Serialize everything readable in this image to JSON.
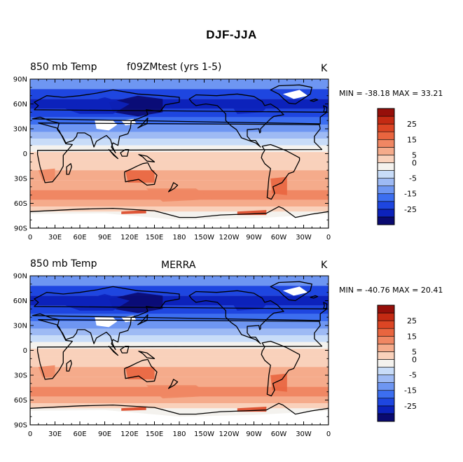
{
  "title": "DJF-JJA",
  "colors": [
    "#0a0a70",
    "#0c22bb",
    "#1e46e0",
    "#3c6ef0",
    "#6e96f2",
    "#9ebaf4",
    "#c8dcf8",
    "#f4f2ee",
    "#f9d1bb",
    "#f5ab8b",
    "#f08763",
    "#e9653f",
    "#dc4524",
    "#c42a13",
    "#960f0a"
  ],
  "panels": [
    {
      "name": "model",
      "left_label": "850 mb Temp",
      "center_label": "f09ZMtest (yrs 1-5)",
      "unit": "K",
      "stats": "MIN = -38.18 MAX =  33.21",
      "min": -38.18,
      "max": 33.21
    },
    {
      "name": "obs",
      "left_label": "850 mb Temp",
      "center_label": "MERRA",
      "unit": "K",
      "stats": "MIN = -40.76 MAX =  20.41",
      "min": -40.76,
      "max": 20.41
    }
  ],
  "lat_labels": [
    "90N",
    "60N",
    "30N",
    "0",
    "30S",
    "60S",
    "90S"
  ],
  "lon_labels": [
    "0",
    "30E",
    "60E",
    "90E",
    "120E",
    "150E",
    "180",
    "150W",
    "120W",
    "90W",
    "60W",
    "30W",
    "0"
  ],
  "colorbar_labels": [
    "25",
    "15",
    "5",
    "0",
    "-5",
    "-15",
    "-25"
  ]
}
